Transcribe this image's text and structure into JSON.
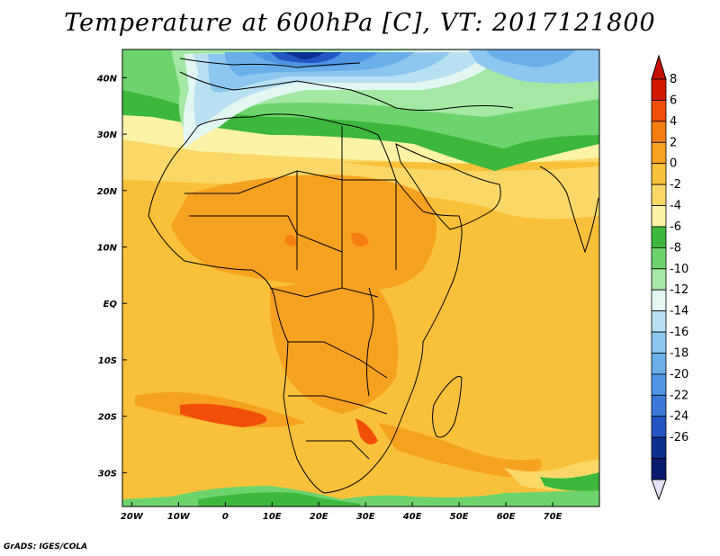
{
  "title": "Temperature at 600hPa [C], VT: 2017121800",
  "credit": "GrADS: IGES/COLA",
  "map": {
    "region": "Africa",
    "lon_range": [
      -22,
      80
    ],
    "lat_range": [
      -36,
      45
    ],
    "lon_ticks": [
      "20W",
      "10W",
      "0",
      "10E",
      "20E",
      "30E",
      "40E",
      "50E",
      "60E",
      "70E"
    ],
    "lon_values": [
      -20,
      -10,
      0,
      10,
      20,
      30,
      40,
      50,
      60,
      70
    ],
    "lat_ticks": [
      "40N",
      "30N",
      "20N",
      "10N",
      "EQ",
      "10S",
      "20S",
      "30S"
    ],
    "lat_values": [
      40,
      30,
      20,
      10,
      0,
      -10,
      -20,
      -30
    ],
    "field": "Temperature at 600hPa",
    "units": "C"
  },
  "colorbar": {
    "labels": [
      "8",
      "6",
      "4",
      "2",
      "0",
      "-2",
      "-4",
      "-6",
      "-8",
      "-10",
      "-12",
      "-14",
      "-16",
      "-18",
      "-20",
      "-22",
      "-24",
      "-26"
    ],
    "colors": [
      "#d11a00",
      "#f04e0a",
      "#f47e10",
      "#f7a121",
      "#f9c13a",
      "#fad867",
      "#fdf3a6",
      "#3cb83c",
      "#6dd46d",
      "#a4e8a4",
      "#e2f7f2",
      "#b8e0f3",
      "#8dc6ee",
      "#6aaeea",
      "#4f95e4",
      "#3a79d8",
      "#2457c2",
      "#0d2f90",
      "#0a1a6e"
    ],
    "top_arrow_color": "#c81000",
    "bottom_arrow_color": "#e8e2f6"
  }
}
